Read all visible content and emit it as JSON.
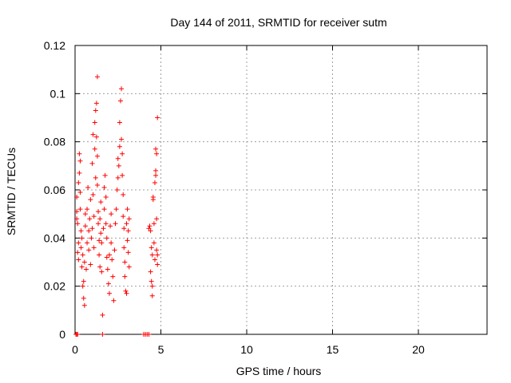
{
  "chart_data": {
    "type": "scatter",
    "title": "Day 144 of 2011, SRMTID for receiver sutm",
    "xlabel": "GPS time / hours",
    "ylabel": "SRMTID / TECUs",
    "xlim": [
      0,
      24
    ],
    "ylim": [
      0,
      0.12
    ],
    "xticks": [
      0,
      5,
      10,
      15,
      20
    ],
    "xtick_labels": [
      "0",
      "5",
      "10",
      "15",
      "20"
    ],
    "yticks": [
      0,
      0.02,
      0.04,
      0.06,
      0.08,
      0.1,
      0.12
    ],
    "ytick_labels": [
      "0",
      "0.02",
      "0.04",
      "0.06",
      "0.08",
      "0.1",
      "0.12"
    ],
    "grid": true,
    "marker": "plus",
    "color": "#ff0000",
    "series": [
      {
        "points": [
          [
            0.05,
            0.0
          ],
          [
            0.1,
            0.0
          ],
          [
            0.15,
            0.0
          ],
          [
            0.1,
            0.057
          ],
          [
            0.1,
            0.051
          ],
          [
            0.1,
            0.048
          ],
          [
            0.15,
            0.046
          ],
          [
            0.2,
            0.038
          ],
          [
            0.15,
            0.034
          ],
          [
            0.2,
            0.031
          ],
          [
            0.2,
            0.063
          ],
          [
            0.25,
            0.075
          ],
          [
            0.25,
            0.067
          ],
          [
            0.3,
            0.072
          ],
          [
            0.3,
            0.059
          ],
          [
            0.3,
            0.052
          ],
          [
            0.35,
            0.043
          ],
          [
            0.35,
            0.036
          ],
          [
            0.4,
            0.04
          ],
          [
            0.4,
            0.028
          ],
          [
            0.45,
            0.033
          ],
          [
            0.45,
            0.02
          ],
          [
            0.5,
            0.015
          ],
          [
            0.5,
            0.022
          ],
          [
            0.55,
            0.012
          ],
          [
            0.55,
            0.03
          ],
          [
            0.6,
            0.045
          ],
          [
            0.6,
            0.05
          ],
          [
            0.65,
            0.027
          ],
          [
            0.7,
            0.038
          ],
          [
            0.7,
            0.052
          ],
          [
            0.75,
            0.061
          ],
          [
            0.8,
            0.043
          ],
          [
            0.8,
            0.035
          ],
          [
            0.85,
            0.048
          ],
          [
            0.9,
            0.056
          ],
          [
            0.9,
            0.029
          ],
          [
            0.95,
            0.04
          ],
          [
            1.0,
            0.071
          ],
          [
            1.0,
            0.044
          ],
          [
            1.05,
            0.083
          ],
          [
            1.05,
            0.058
          ],
          [
            1.1,
            0.036
          ],
          [
            1.1,
            0.049
          ],
          [
            1.15,
            0.088
          ],
          [
            1.15,
            0.077
          ],
          [
            1.2,
            0.093
          ],
          [
            1.2,
            0.065
          ],
          [
            1.25,
            0.096
          ],
          [
            1.25,
            0.082
          ],
          [
            1.3,
            0.107
          ],
          [
            1.3,
            0.074
          ],
          [
            1.3,
            0.062
          ],
          [
            1.35,
            0.051
          ],
          [
            1.35,
            0.046
          ],
          [
            1.4,
            0.039
          ],
          [
            1.4,
            0.033
          ],
          [
            1.45,
            0.028
          ],
          [
            1.45,
            0.048
          ],
          [
            1.5,
            0.055
          ],
          [
            1.5,
            0.042
          ],
          [
            1.55,
            0.038
          ],
          [
            1.55,
            0.026
          ],
          [
            1.6,
            0.008
          ],
          [
            1.6,
            0.0
          ],
          [
            1.65,
            0.044
          ],
          [
            1.7,
            0.052
          ],
          [
            1.7,
            0.061
          ],
          [
            1.75,
            0.066
          ],
          [
            1.8,
            0.057
          ],
          [
            1.8,
            0.046
          ],
          [
            1.85,
            0.04
          ],
          [
            1.85,
            0.032
          ],
          [
            1.9,
            0.027
          ],
          [
            1.95,
            0.021
          ],
          [
            2.0,
            0.017
          ],
          [
            2.0,
            0.033
          ],
          [
            2.05,
            0.045
          ],
          [
            2.1,
            0.05
          ],
          [
            2.1,
            0.038
          ],
          [
            2.15,
            0.031
          ],
          [
            2.2,
            0.024
          ],
          [
            2.25,
            0.014
          ],
          [
            2.3,
            0.035
          ],
          [
            2.35,
            0.046
          ],
          [
            2.4,
            0.052
          ],
          [
            2.45,
            0.06
          ],
          [
            2.5,
            0.065
          ],
          [
            2.5,
            0.073
          ],
          [
            2.55,
            0.07
          ],
          [
            2.6,
            0.088
          ],
          [
            2.6,
            0.078
          ],
          [
            2.65,
            0.097
          ],
          [
            2.7,
            0.102
          ],
          [
            2.7,
            0.081
          ],
          [
            2.75,
            0.075
          ],
          [
            2.75,
            0.066
          ],
          [
            2.8,
            0.058
          ],
          [
            2.8,
            0.049
          ],
          [
            2.85,
            0.044
          ],
          [
            2.85,
            0.036
          ],
          [
            2.9,
            0.03
          ],
          [
            2.9,
            0.024
          ],
          [
            2.95,
            0.018
          ],
          [
            3.0,
            0.017
          ],
          [
            3.0,
            0.046
          ],
          [
            3.05,
            0.052
          ],
          [
            3.05,
            0.039
          ],
          [
            3.1,
            0.034
          ],
          [
            3.1,
            0.043
          ],
          [
            3.15,
            0.048
          ],
          [
            3.15,
            0.028
          ],
          [
            4.0,
            0.0
          ],
          [
            4.1,
            0.0
          ],
          [
            4.2,
            0.0
          ],
          [
            4.3,
            0.0
          ],
          [
            4.3,
            0.044
          ],
          [
            4.35,
            0.045
          ],
          [
            4.4,
            0.043
          ],
          [
            4.45,
            0.036
          ],
          [
            4.5,
            0.033
          ],
          [
            4.4,
            0.026
          ],
          [
            4.45,
            0.022
          ],
          [
            4.5,
            0.02
          ],
          [
            4.5,
            0.016
          ],
          [
            4.55,
            0.057
          ],
          [
            4.55,
            0.056
          ],
          [
            4.6,
            0.046
          ],
          [
            4.6,
            0.038
          ],
          [
            4.65,
            0.031
          ],
          [
            4.65,
            0.063
          ],
          [
            4.7,
            0.066
          ],
          [
            4.7,
            0.068
          ],
          [
            4.7,
            0.077
          ],
          [
            4.75,
            0.075
          ],
          [
            4.75,
            0.048
          ],
          [
            4.75,
            0.035
          ],
          [
            4.8,
            0.033
          ],
          [
            4.8,
            0.029
          ],
          [
            4.8,
            0.09
          ]
        ]
      }
    ]
  }
}
